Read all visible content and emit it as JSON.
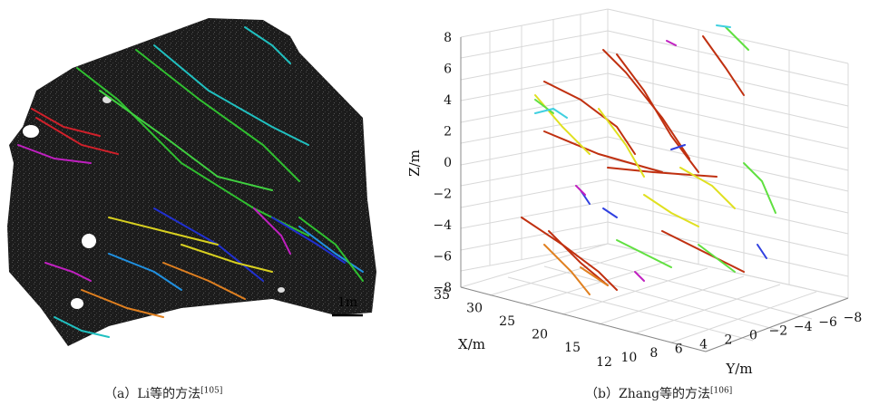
{
  "figure_a": {
    "scale_bar_label": "1m",
    "caption_prefix": "（a）Li等的方法",
    "caption_ref": "[105]",
    "colors": {
      "background_cloud": "#1c1c1c",
      "red": "#d0202a",
      "magenta": "#c020c0",
      "green": "#30c030",
      "cyan": "#20c0c0",
      "blue": "#2030d0",
      "yellow": "#d8d020",
      "orange": "#e08020",
      "lightblue": "#2090e0"
    }
  },
  "figure_b": {
    "caption_prefix": "（b）Zhang等的方法",
    "caption_ref": "[106]",
    "chart_data": {
      "type": "line3d",
      "axes": {
        "z": {
          "label": "Z/m",
          "ticks": [
            "8",
            "6",
            "4",
            "2",
            "0",
            "−2",
            "−4",
            "−6",
            "−8"
          ],
          "range": [
            -8,
            8
          ]
        },
        "x": {
          "label": "X/m",
          "ticks": [
            "35",
            "30",
            "25",
            "20",
            "15"
          ],
          "range": [
            15,
            35
          ]
        },
        "y": {
          "label": "Y/m",
          "ticks": [
            "12",
            "10",
            "8",
            "6",
            "4",
            "2",
            "0",
            "−2",
            "−4",
            "−6",
            "−8"
          ],
          "range": [
            -8,
            12
          ]
        }
      },
      "grid": true,
      "colors": [
        "#c03010",
        "#e0e020",
        "#60e040",
        "#3040e0",
        "#c020c0",
        "#40d0e0",
        "#e08020"
      ]
    }
  }
}
